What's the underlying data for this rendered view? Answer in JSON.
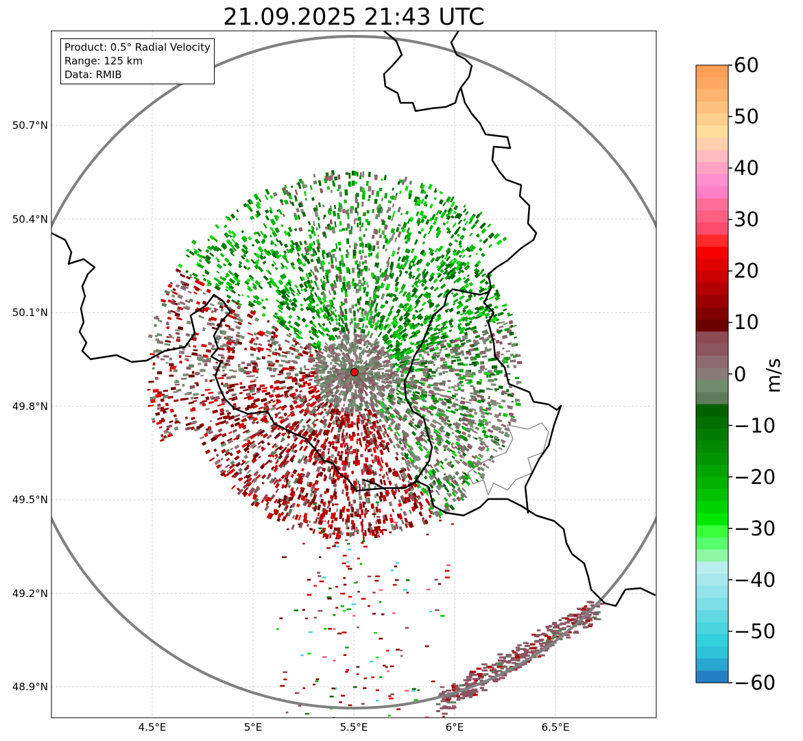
{
  "title": "21.09.2025 21:43 UTC",
  "info_box": {
    "product": "Product: 0.5° Radial Velocity",
    "range": "Range: 125 km",
    "data": "Data: RMIB"
  },
  "map": {
    "lon_range": [
      4.0,
      7.0
    ],
    "lat_range": [
      48.8,
      51.0
    ],
    "lat_ticks": [
      "50.7°N",
      "50.4°N",
      "50.1°N",
      "49.8°N",
      "49.5°N",
      "49.2°N",
      "48.9°N"
    ],
    "lon_ticks": [
      "4.5°E",
      "5°E",
      "5.5°E",
      "6°E",
      "6.5°E"
    ],
    "radar_site": {
      "lon": 5.505,
      "lat": 49.914
    },
    "gridlines": true,
    "range_ring_km": 125
  },
  "colorbar": {
    "unit": "m/s",
    "min": -60,
    "max": 60,
    "ticks": [
      "60",
      "50",
      "40",
      "30",
      "20",
      "10",
      "0",
      "−10",
      "−20",
      "−30",
      "−40",
      "−50",
      "−60"
    ],
    "colors_top_to_bottom": [
      "#ff9e57",
      "#ffa862",
      "#ffb46f",
      "#ffc17d",
      "#ffcf8c",
      "#ffdd9b",
      "#ffd0ae",
      "#ffbcc0",
      "#ffa3c5",
      "#ff8fcf",
      "#ff80c8",
      "#ff6e9a",
      "#ff5f80",
      "#ff4b6c",
      "#ff2a2a",
      "#f70000",
      "#e10000",
      "#c80000",
      "#b00000",
      "#980000",
      "#800000",
      "#6b0000",
      "#8c4a55",
      "#8b5562",
      "#8e6a72",
      "#8a7a78",
      "#6f8c6c",
      "#5e7c5c",
      "#006100",
      "#006e00",
      "#007b00",
      "#008800",
      "#009500",
      "#00a300",
      "#00b100",
      "#00c000",
      "#00d200",
      "#00e600",
      "#3afe3a",
      "#55ff6e",
      "#8ef7a2",
      "#b8eeee",
      "#a8e8ec",
      "#92e4ea",
      "#7cdfe6",
      "#62d9e2",
      "#49d4df",
      "#33d0dd",
      "#2ec3d8",
      "#2aa6d0",
      "#247ec4"
    ]
  }
}
